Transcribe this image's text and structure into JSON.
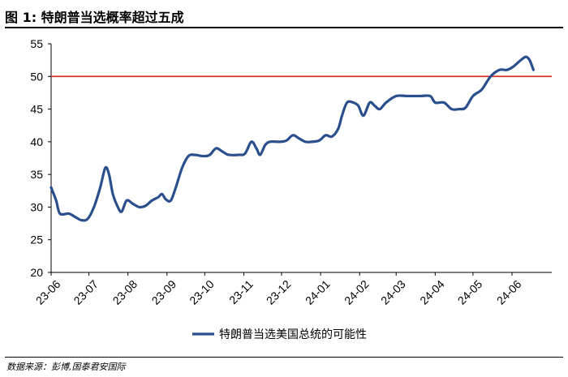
{
  "title": "图 1:  特朗普当选概率超过五成",
  "source": "数据来源：彭博,国泰君安国际",
  "colors": {
    "series": "#2b4f8c",
    "threshold": "#d9302a",
    "axis": "#000000"
  },
  "chart_data": {
    "type": "line",
    "ylim": [
      20,
      55
    ],
    "yticks": [
      20,
      25,
      30,
      35,
      40,
      45,
      50,
      55
    ],
    "xticks": [
      "23-06",
      "23-07",
      "23-08",
      "23-09",
      "23-10",
      "23-11",
      "23-12",
      "24-01",
      "24-02",
      "24-03",
      "24-04",
      "24-05",
      "24-06"
    ],
    "reference_line": 50,
    "legend_position": "bottom-center",
    "grid": false,
    "series": [
      {
        "name": "特朗普当选美国总统的可能性",
        "points": [
          [
            "23-06-01",
            33
          ],
          [
            "23-06-05",
            31
          ],
          [
            "23-06-08",
            29
          ],
          [
            "23-06-15",
            29
          ],
          [
            "23-06-20",
            28.5
          ],
          [
            "23-06-25",
            28
          ],
          [
            "23-06-30",
            28.2
          ],
          [
            "23-07-05",
            30
          ],
          [
            "23-07-10",
            33
          ],
          [
            "23-07-14",
            36
          ],
          [
            "23-07-17",
            35
          ],
          [
            "23-07-20",
            32
          ],
          [
            "23-07-24",
            30
          ],
          [
            "23-07-27",
            29.3
          ],
          [
            "23-07-31",
            31
          ],
          [
            "23-08-05",
            30.5
          ],
          [
            "23-08-10",
            30
          ],
          [
            "23-08-15",
            30.2
          ],
          [
            "23-08-20",
            31
          ],
          [
            "23-08-25",
            31.5
          ],
          [
            "23-08-28",
            32
          ],
          [
            "23-08-31",
            31.2
          ],
          [
            "23-09-04",
            31
          ],
          [
            "23-09-08",
            33
          ],
          [
            "23-09-13",
            36
          ],
          [
            "23-09-18",
            37.8
          ],
          [
            "23-09-23",
            38
          ],
          [
            "23-09-30",
            37.8
          ],
          [
            "23-10-05",
            38
          ],
          [
            "23-10-10",
            39
          ],
          [
            "23-10-15",
            38.5
          ],
          [
            "23-10-20",
            38
          ],
          [
            "23-10-28",
            38
          ],
          [
            "23-11-02",
            38.2
          ],
          [
            "23-11-07",
            40
          ],
          [
            "23-11-11",
            39
          ],
          [
            "23-11-14",
            38
          ],
          [
            "23-11-18",
            39.5
          ],
          [
            "23-11-22",
            40
          ],
          [
            "23-11-30",
            40
          ],
          [
            "23-12-05",
            40.2
          ],
          [
            "23-12-10",
            41
          ],
          [
            "23-12-15",
            40.5
          ],
          [
            "23-12-20",
            40
          ],
          [
            "23-12-25",
            40
          ],
          [
            "23-12-31",
            40.2
          ],
          [
            "24-01-05",
            41
          ],
          [
            "24-01-10",
            40.8
          ],
          [
            "24-01-15",
            42
          ],
          [
            "24-01-18",
            44
          ],
          [
            "24-01-22",
            46
          ],
          [
            "24-01-27",
            46
          ],
          [
            "24-01-31",
            45.5
          ],
          [
            "24-02-04",
            44
          ],
          [
            "24-02-09",
            46
          ],
          [
            "24-02-13",
            45.5
          ],
          [
            "24-02-17",
            45
          ],
          [
            "24-02-22",
            46
          ],
          [
            "24-03-01",
            47
          ],
          [
            "24-03-10",
            47
          ],
          [
            "24-03-20",
            47
          ],
          [
            "24-03-28",
            47
          ],
          [
            "24-04-01",
            46
          ],
          [
            "24-04-08",
            46
          ],
          [
            "24-04-14",
            45
          ],
          [
            "24-04-20",
            45
          ],
          [
            "24-04-25",
            45.2
          ],
          [
            "24-05-01",
            47
          ],
          [
            "24-05-08",
            48
          ],
          [
            "24-05-15",
            50
          ],
          [
            "24-05-22",
            51
          ],
          [
            "24-05-28",
            51
          ],
          [
            "24-06-02",
            51.5
          ],
          [
            "24-06-08",
            52.5
          ],
          [
            "24-06-12",
            53
          ],
          [
            "24-06-15",
            52.5
          ],
          [
            "24-06-18",
            51
          ]
        ]
      }
    ]
  }
}
